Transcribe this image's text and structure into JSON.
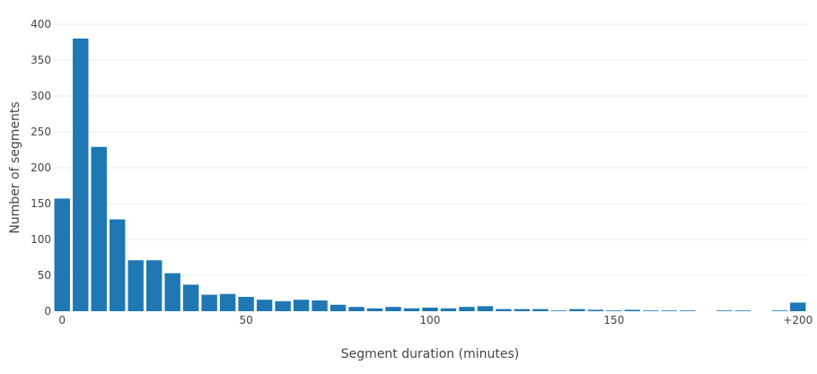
{
  "chart_data": {
    "type": "bar",
    "title": "",
    "xlabel": "Segment duration (minutes)",
    "ylabel": "Number of segments",
    "x_tick_labels": [
      "0",
      "50",
      "100",
      "150",
      "+200"
    ],
    "x_tick_values": [
      0,
      50,
      100,
      150,
      200
    ],
    "y_ticks": [
      0,
      50,
      100,
      150,
      200,
      250,
      300,
      350,
      400
    ],
    "xlim": [
      -2.5,
      202.5
    ],
    "ylim": [
      0,
      400
    ],
    "bin_width": 5,
    "x": [
      0,
      5,
      10,
      15,
      20,
      25,
      30,
      35,
      40,
      45,
      50,
      55,
      60,
      65,
      70,
      75,
      80,
      85,
      90,
      95,
      100,
      105,
      110,
      115,
      120,
      125,
      130,
      135,
      140,
      145,
      150,
      155,
      160,
      165,
      170,
      175,
      180,
      185,
      190,
      195,
      200
    ],
    "values": [
      157,
      380,
      229,
      128,
      71,
      71,
      53,
      37,
      23,
      24,
      20,
      16,
      14,
      16,
      15,
      9,
      6,
      4,
      6,
      4,
      5,
      4,
      6,
      7,
      3,
      3,
      3,
      1,
      3,
      2,
      1,
      2,
      1,
      1,
      1,
      0,
      1,
      1,
      0,
      1,
      12
    ],
    "bar_color": "#1f77b4",
    "grid": true,
    "grid_color": "#eeeeee",
    "legend": "none"
  }
}
